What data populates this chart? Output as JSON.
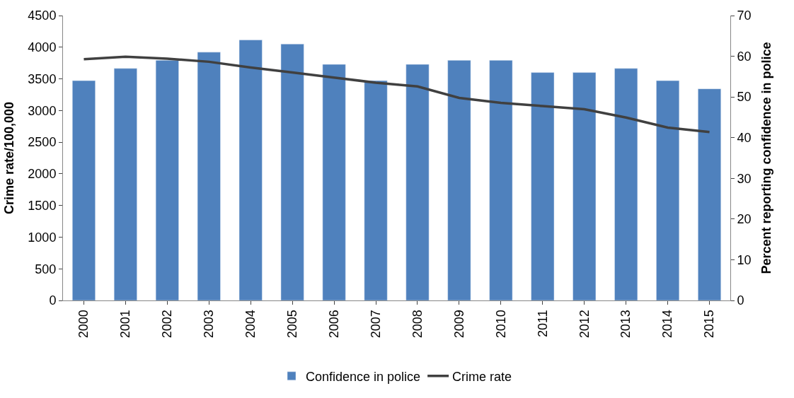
{
  "chart_data": {
    "type": "bar",
    "ylabel": "Crime rate/100,000",
    "y2label": "Percent reporting confidence in police",
    "categories": [
      "2000",
      "2001",
      "2002",
      "2003",
      "2004",
      "2005",
      "2006",
      "2007",
      "2008",
      "2009",
      "2010",
      "2011",
      "2012",
      "2013",
      "2014",
      "2015"
    ],
    "series": [
      {
        "name": "Confidence in police",
        "axis": "y2",
        "color": "#4f81bd",
        "values": [
          54,
          57,
          59,
          61,
          64,
          63,
          58,
          54,
          58,
          59,
          59,
          56,
          56,
          57,
          54,
          52
        ]
      },
      {
        "name": "Crime rate",
        "type": "line",
        "axis": "y",
        "color": "#404040",
        "marker": "none",
        "values": [
          3810,
          3850,
          3820,
          3770,
          3680,
          3600,
          3520,
          3440,
          3380,
          3200,
          3120,
          3070,
          3020,
          2890,
          2730,
          2660
        ]
      }
    ],
    "ylim": [
      0,
      4500
    ],
    "yticks": [
      0,
      500,
      1000,
      1500,
      2000,
      2500,
      3000,
      3500,
      4000,
      4500
    ],
    "y2lim": [
      0,
      70
    ],
    "y2ticks": [
      0,
      10,
      20,
      30,
      40,
      50,
      60,
      70
    ],
    "legend": "bottom"
  }
}
